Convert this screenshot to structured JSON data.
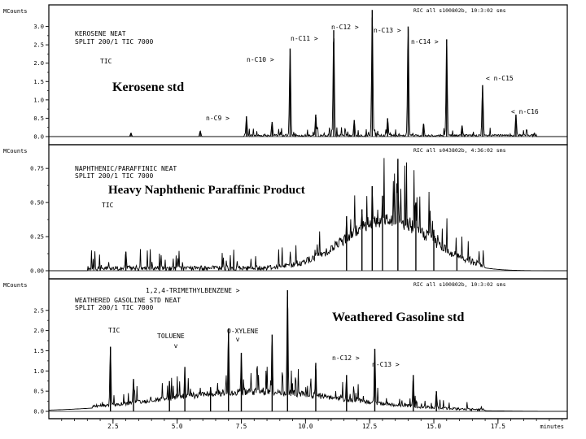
{
  "chart_data": [
    {
      "type": "line",
      "ylabel": "MCounts",
      "ylim": [
        0,
        3.5
      ],
      "yticks": [
        0.0,
        0.5,
        1.0,
        1.5,
        2.0,
        2.5,
        3.0
      ],
      "ytick_labels": [
        "0.0",
        "0.5",
        "1.0",
        "1.5",
        "2.0",
        "2.5",
        "3.0"
      ],
      "header": "RIC all s100802b, 10:3:02 sms",
      "method_lines": [
        "KEROSENE  NEAT",
        "SPLIT 200/1 TIC 7000"
      ],
      "trace_label": "TIC",
      "title": "Kerosene std",
      "noise_region": [
        7.6,
        19.0
      ],
      "noise_level": 0.12,
      "peaks": [
        {
          "x": 3.2,
          "y": 0.1,
          "label": ""
        },
        {
          "x": 5.9,
          "y": 0.15,
          "label": ""
        },
        {
          "x": 7.7,
          "y": 0.55,
          "label": "n-C9 >"
        },
        {
          "x": 9.4,
          "y": 2.4,
          "label": "n-C10 >"
        },
        {
          "x": 11.1,
          "y": 2.9,
          "label": "n-C11 >"
        },
        {
          "x": 12.6,
          "y": 3.45,
          "label": "n-C12 >"
        },
        {
          "x": 14.0,
          "y": 3.0,
          "label": "n-C13 >"
        },
        {
          "x": 15.5,
          "y": 2.65,
          "label": "n-C14 >"
        },
        {
          "x": 16.9,
          "y": 1.4,
          "label": "< n-C15"
        },
        {
          "x": 18.2,
          "y": 0.6,
          "label": "< n-C16"
        },
        {
          "x": 8.7,
          "y": 0.4,
          "label": ""
        },
        {
          "x": 10.4,
          "y": 0.6,
          "label": ""
        },
        {
          "x": 11.9,
          "y": 0.45,
          "label": ""
        },
        {
          "x": 13.2,
          "y": 0.5,
          "label": ""
        },
        {
          "x": 14.6,
          "y": 0.35,
          "label": ""
        },
        {
          "x": 16.1,
          "y": 0.3,
          "label": ""
        }
      ]
    },
    {
      "type": "line",
      "ylabel": "MCounts",
      "ylim": [
        0,
        0.9
      ],
      "yticks": [
        0.0,
        0.25,
        0.5,
        0.75
      ],
      "ytick_labels": [
        "0.00",
        "0.25",
        "0.50",
        "0.75"
      ],
      "header": "RIC all s043802b, 4:36:02 sms",
      "method_lines": [
        "NAPHTHENIC/PARAFFINIC  NEAT",
        "SPLIT 200/1 TIC 7000"
      ],
      "trace_label": "TIC",
      "title": "Heavy Naphthenic Paraffinic Product",
      "hump": {
        "center": 13.2,
        "width": 2.3,
        "height": 0.32
      },
      "noise_level": 0.18,
      "peaks": [
        {
          "x": 3.0,
          "y": 0.14,
          "label": ""
        },
        {
          "x": 2.0,
          "y": 0.02,
          "label": ""
        },
        {
          "x": 12.6,
          "y": 0.62,
          "label": ""
        },
        {
          "x": 13.0,
          "y": 0.55,
          "label": ""
        },
        {
          "x": 13.6,
          "y": 0.82,
          "label": ""
        },
        {
          "x": 12.2,
          "y": 0.45,
          "label": ""
        },
        {
          "x": 11.6,
          "y": 0.4,
          "label": ""
        },
        {
          "x": 14.3,
          "y": 0.5,
          "label": ""
        },
        {
          "x": 15.0,
          "y": 0.3,
          "label": ""
        },
        {
          "x": 15.9,
          "y": 0.12,
          "label": ""
        }
      ]
    },
    {
      "type": "line",
      "ylabel": "MCounts",
      "ylim": [
        0,
        3.2
      ],
      "yticks": [
        0.0,
        0.5,
        1.0,
        1.5,
        2.0,
        2.5
      ],
      "ytick_labels": [
        "0.0",
        "0.5",
        "1.0",
        "1.5",
        "2.0",
        "2.5"
      ],
      "header": "RIC all s100802b, 10:3:02 sms",
      "method_lines": [
        "WEATHERED GASOLINE STD  NEAT",
        "SPLIT 200/1 TIC 7000"
      ],
      "trace_label": "TIC",
      "title": "Weathered Gasoline std",
      "hump": {
        "center": 8.0,
        "width": 5.0,
        "height": 0.4
      },
      "noise_region": [
        1.7,
        17.0
      ],
      "noise_level": 0.25,
      "peaks": [
        {
          "x": 2.4,
          "y": 1.6,
          "label": ""
        },
        {
          "x": 3.3,
          "y": 0.8,
          "label": ""
        },
        {
          "x": 4.7,
          "y": 0.75,
          "label": ""
        },
        {
          "x": 5.3,
          "y": 1.1,
          "label": "TOLUENE"
        },
        {
          "x": 6.3,
          "y": 0.6,
          "label": ""
        },
        {
          "x": 7.0,
          "y": 2.05,
          "label": ""
        },
        {
          "x": 7.5,
          "y": 1.45,
          "label": "O-XYLENE"
        },
        {
          "x": 8.7,
          "y": 1.9,
          "label": ""
        },
        {
          "x": 9.3,
          "y": 3.0,
          "label": "1,2,4-TRIMETHYLBENZENE >"
        },
        {
          "x": 10.4,
          "y": 1.2,
          "label": ""
        },
        {
          "x": 11.6,
          "y": 0.9,
          "label": "n-C12 >"
        },
        {
          "x": 12.7,
          "y": 1.55,
          "label": ""
        },
        {
          "x": 14.2,
          "y": 0.9,
          "label": "n-C13 >"
        },
        {
          "x": 15.1,
          "y": 0.5,
          "label": ""
        }
      ]
    }
  ],
  "x_axis": {
    "unit": "minutes",
    "xlim": [
      0,
      20.2
    ],
    "ticks": [
      2.5,
      5.0,
      7.5,
      10.0,
      12.5,
      15.0,
      17.5
    ],
    "tick_labels": [
      "2.5",
      "5.0",
      "7.5",
      "10.0",
      "12.5",
      "15.0",
      "17.5"
    ],
    "minor_step": 0.5
  }
}
